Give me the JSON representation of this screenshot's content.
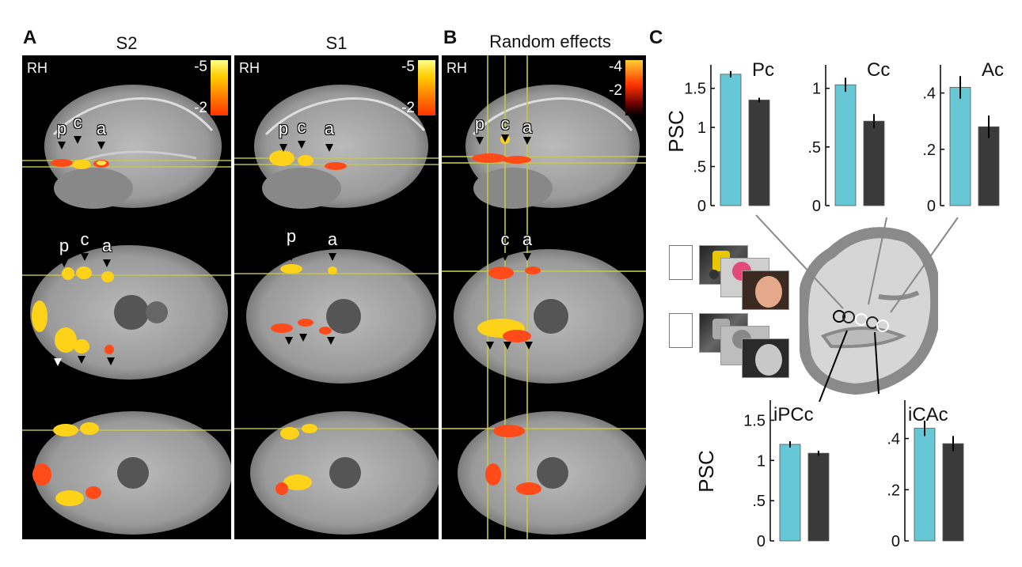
{
  "panel_letters": {
    "a": "A",
    "b": "B",
    "c": "C"
  },
  "columns": {
    "s2_title": "S2",
    "s1_title": "S1",
    "re_title": "Random effects"
  },
  "hemisphere_label": "RH",
  "colorbars": {
    "s2": {
      "top": "-5",
      "bottom": "-2"
    },
    "s1": {
      "top": "-5",
      "bottom": "-2"
    },
    "re": {
      "top": "-4",
      "bottom": "-2"
    }
  },
  "roi_markers": {
    "s2_sag": [
      "p",
      "c",
      "a"
    ],
    "s1_sag": [
      "p",
      "c",
      "a"
    ],
    "re_sag": [
      "p",
      "c",
      "a"
    ],
    "s2_ax": [
      "p",
      "c",
      "a"
    ],
    "s1_ax": [
      "p",
      "a"
    ],
    "re_ax": [
      "c",
      "a"
    ]
  },
  "axis_labels": {
    "psc_top": "PSC",
    "psc_bottom": "PSC"
  },
  "colors": {
    "cyan": "#66c7d6",
    "dark": "#3a3a3a",
    "brain_gray": "#8a8a8a",
    "brain_light": "#d6d6d6"
  },
  "chart_data": [
    {
      "type": "bar",
      "title": "Pc",
      "categories": [
        "color",
        "grayscale"
      ],
      "values": [
        1.68,
        1.35
      ],
      "errors": [
        0.04,
        0.03
      ],
      "ylim": [
        0,
        1.8
      ],
      "yticks": [
        "0",
        ".5",
        "1",
        "1.5"
      ],
      "ytick_values": [
        0,
        0.5,
        1,
        1.5
      ],
      "ylabel": "PSC"
    },
    {
      "type": "bar",
      "title": "Cc",
      "categories": [
        "color",
        "grayscale"
      ],
      "values": [
        1.03,
        0.72
      ],
      "errors": [
        0.06,
        0.06
      ],
      "ylim": [
        0,
        1.2
      ],
      "yticks": [
        "0",
        ".5",
        "1"
      ],
      "ytick_values": [
        0,
        0.5,
        1
      ]
    },
    {
      "type": "bar",
      "title": "Ac",
      "categories": [
        "color",
        "grayscale"
      ],
      "values": [
        0.42,
        0.28
      ],
      "errors": [
        0.04,
        0.04
      ],
      "ylim": [
        0,
        0.5
      ],
      "yticks": [
        "0",
        ".2",
        ".4"
      ],
      "ytick_values": [
        0,
        0.2,
        0.4
      ]
    },
    {
      "type": "bar",
      "title": "iPCc",
      "categories": [
        "color",
        "grayscale"
      ],
      "values": [
        1.2,
        1.09
      ],
      "errors": [
        0.04,
        0.03
      ],
      "ylim": [
        0,
        1.75
      ],
      "yticks": [
        "0",
        ".5",
        "1",
        "1.5"
      ],
      "ytick_values": [
        0,
        0.5,
        1,
        1.5
      ],
      "ylabel": "PSC"
    },
    {
      "type": "bar",
      "title": "iCAc",
      "categories": [
        "color",
        "grayscale"
      ],
      "values": [
        0.44,
        0.38
      ],
      "errors": [
        0.03,
        0.03
      ],
      "ylim": [
        0,
        0.55
      ],
      "yticks": [
        "0",
        ".2",
        ".4"
      ],
      "ytick_values": [
        0,
        0.2,
        0.4
      ]
    }
  ]
}
